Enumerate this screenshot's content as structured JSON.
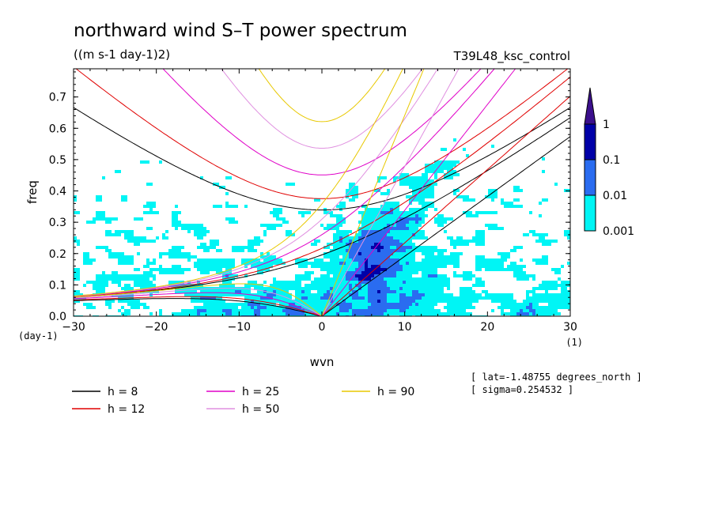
{
  "title": "northward wind S–T power spectrum",
  "units": "((m s-1 day-1)2)",
  "run_name": "T39L48_ksc_control",
  "info": [
    "[ lat=-1.48755 degrees_north ]",
    "[ sigma=0.254532 ]"
  ],
  "colorbar": {
    "labels": [
      "1",
      "0.1",
      "0.01",
      "0.001"
    ],
    "colors": [
      "#3b0f8c",
      "#0000a8",
      "#2a6cf0",
      "#00f5f5"
    ]
  },
  "chart_data": {
    "type": "heatmap",
    "title": "northward wind S–T power spectrum",
    "xlabel": "wvn",
    "ylabel": "freq",
    "x_unit": "(1)",
    "y_unit": "(day-1)",
    "xlim": [
      -30,
      30
    ],
    "ylim": [
      0,
      0.79
    ],
    "x_ticks": [
      -30,
      -20,
      -10,
      0,
      10,
      20,
      30
    ],
    "x_tick_labels": [
      "−30",
      "−20",
      "−10",
      "0",
      "10",
      "20",
      "30"
    ],
    "y_ticks": [
      0,
      0.1,
      0.2,
      0.3,
      0.4,
      0.5,
      0.6,
      0.7
    ],
    "y_tick_labels": [
      "0.0",
      "0.1",
      "0.2",
      "0.3",
      "0.4",
      "0.5",
      "0.6",
      "0.7"
    ],
    "contour_levels": [
      0.001,
      0.01,
      0.1,
      1
    ],
    "dispersion_curves": [
      {
        "h": 8,
        "label": "h =  8",
        "color": "#000000"
      },
      {
        "h": 12,
        "label": "h = 12",
        "color": "#e00000"
      },
      {
        "h": 25,
        "label": "h = 25",
        "color": "#e000c8"
      },
      {
        "h": 50,
        "label": "h = 50",
        "color": "#e090e0"
      },
      {
        "h": 90,
        "label": "h = 90",
        "color": "#e8c800"
      }
    ]
  }
}
